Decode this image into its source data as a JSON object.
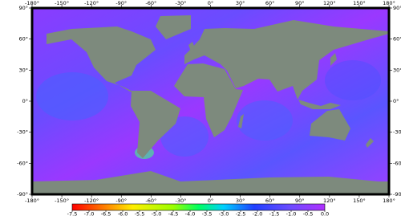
{
  "map": {
    "lon_ticks": [
      {
        "value": -180,
        "label": "-180°"
      },
      {
        "value": -150,
        "label": "-150°"
      },
      {
        "value": -120,
        "label": "-120°"
      },
      {
        "value": -90,
        "label": "-90°"
      },
      {
        "value": -60,
        "label": "-60°"
      },
      {
        "value": -30,
        "label": "-30°"
      },
      {
        "value": 0,
        "label": "0°"
      },
      {
        "value": 30,
        "label": "30°"
      },
      {
        "value": 60,
        "label": "60°"
      },
      {
        "value": 90,
        "label": "90°"
      },
      {
        "value": 120,
        "label": "120°"
      },
      {
        "value": 150,
        "label": "150°"
      },
      {
        "value": 180,
        "label": "180°"
      }
    ],
    "lat_ticks": [
      {
        "value": 90,
        "label": "90°"
      },
      {
        "value": 60,
        "label": "60°"
      },
      {
        "value": 30,
        "label": "30°"
      },
      {
        "value": 0,
        "label": "0°"
      },
      {
        "value": -30,
        "label": "-30°"
      },
      {
        "value": -60,
        "label": "-60°"
      },
      {
        "value": -90,
        "label": "-90°"
      }
    ],
    "colorbar": {
      "lim": [
        -7.5,
        0
      ],
      "ticks": [
        {
          "value": -7.5,
          "label": "-7.5"
        },
        {
          "value": -7,
          "label": "-7.0"
        },
        {
          "value": -6.5,
          "label": "-6.5"
        },
        {
          "value": -6,
          "label": "-6.0"
        },
        {
          "value": -5.5,
          "label": "-5.5"
        },
        {
          "value": -5,
          "label": "-5.0"
        },
        {
          "value": -4.5,
          "label": "-4.5"
        },
        {
          "value": -4,
          "label": "-4.0"
        },
        {
          "value": -3.5,
          "label": "-3.5"
        },
        {
          "value": -3,
          "label": "-3.0"
        },
        {
          "value": -2.5,
          "label": "-2.5"
        },
        {
          "value": -2,
          "label": "-2.0"
        },
        {
          "value": -1.5,
          "label": "-1.5"
        },
        {
          "value": -1,
          "label": "-1.0"
        },
        {
          "value": -0.5,
          "label": "-0.5"
        },
        {
          "value": 0,
          "label": "0.0"
        }
      ]
    }
  }
}
